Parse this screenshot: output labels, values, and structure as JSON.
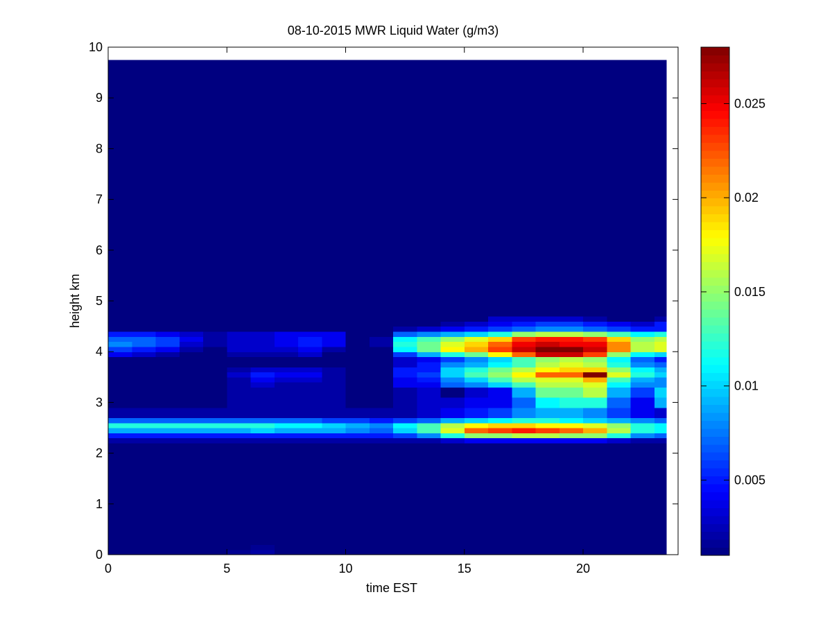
{
  "chart_data": {
    "type": "heatmap",
    "title": "08-10-2015 MWR Liquid Water (g/m3)",
    "xlabel": "time EST",
    "ylabel": "height km",
    "xlim": [
      0,
      24
    ],
    "ylim": [
      0,
      10
    ],
    "xticks": [
      0,
      5,
      10,
      15,
      20
    ],
    "yticks": [
      0,
      1,
      2,
      3,
      4,
      5,
      6,
      7,
      8,
      9,
      10
    ],
    "colorbar": {
      "colormap": "jet",
      "range": [
        0.001,
        0.028
      ],
      "ticks": [
        0.005,
        0.01,
        0.015,
        0.02,
        0.025
      ],
      "tick_labels": [
        "0.005",
        "0.01",
        "0.015",
        "0.02",
        "0.025"
      ]
    },
    "grid": false,
    "x_edges": [
      0,
      1,
      2,
      3,
      4,
      5,
      6,
      7,
      8,
      9,
      10,
      11,
      12,
      13,
      14,
      15,
      16,
      17,
      18,
      19,
      20,
      21,
      22,
      23,
      23.5
    ],
    "y_edges": [
      0,
      0.1,
      0.2,
      2.2,
      2.3,
      2.4,
      2.5,
      2.6,
      2.7,
      2.9,
      3.1,
      3.3,
      3.4,
      3.5,
      3.6,
      3.7,
      3.8,
      3.9,
      4.0,
      4.1,
      4.2,
      4.3,
      4.4,
      4.5,
      4.6,
      4.7,
      9.75
    ],
    "background_value": 0.001,
    "values": [
      [
        0.001,
        0.001,
        0.001,
        0.001,
        0.001,
        0.0015,
        0.002,
        0.001,
        0.001,
        0.001,
        0.001,
        0.001,
        0.001,
        0.001,
        0.001,
        0.001,
        0.001,
        0.001,
        0.001,
        0.001,
        0.001,
        0.001,
        0.001,
        0.001
      ],
      [
        0.001,
        0.001,
        0.001,
        0.001,
        0.001,
        0.001,
        0.0015,
        0.001,
        0.001,
        0.001,
        0.001,
        0.001,
        0.001,
        0.001,
        0.001,
        0.001,
        0.001,
        0.001,
        0.001,
        0.001,
        0.001,
        0.001,
        0.001,
        0.001
      ],
      [
        0.001,
        0.001,
        0.001,
        0.001,
        0.001,
        0.001,
        0.001,
        0.001,
        0.001,
        0.001,
        0.001,
        0.001,
        0.001,
        0.001,
        0.001,
        0.001,
        0.001,
        0.001,
        0.001,
        0.001,
        0.001,
        0.001,
        0.001,
        0.001
      ],
      [
        0.002,
        0.002,
        0.002,
        0.002,
        0.002,
        0.002,
        0.002,
        0.002,
        0.002,
        0.002,
        0.002,
        0.002,
        0.002,
        0.002,
        0.003,
        0.004,
        0.004,
        0.004,
        0.004,
        0.004,
        0.004,
        0.003,
        0.002,
        0.002
      ],
      [
        0.005,
        0.005,
        0.005,
        0.005,
        0.005,
        0.005,
        0.005,
        0.005,
        0.005,
        0.005,
        0.005,
        0.005,
        0.006,
        0.008,
        0.012,
        0.015,
        0.015,
        0.016,
        0.016,
        0.015,
        0.015,
        0.012,
        0.008,
        0.007
      ],
      [
        0.009,
        0.009,
        0.009,
        0.009,
        0.009,
        0.009,
        0.01,
        0.009,
        0.009,
        0.009,
        0.008,
        0.007,
        0.01,
        0.013,
        0.017,
        0.022,
        0.023,
        0.024,
        0.023,
        0.022,
        0.02,
        0.016,
        0.012,
        0.011
      ],
      [
        0.012,
        0.012,
        0.012,
        0.012,
        0.012,
        0.012,
        0.012,
        0.011,
        0.011,
        0.01,
        0.009,
        0.008,
        0.011,
        0.013,
        0.016,
        0.018,
        0.019,
        0.019,
        0.018,
        0.018,
        0.017,
        0.015,
        0.012,
        0.011
      ],
      [
        0.007,
        0.007,
        0.007,
        0.007,
        0.007,
        0.007,
        0.007,
        0.007,
        0.007,
        0.006,
        0.006,
        0.005,
        0.006,
        0.007,
        0.009,
        0.01,
        0.011,
        0.012,
        0.012,
        0.011,
        0.01,
        0.009,
        0.008,
        0.007
      ],
      [
        0.002,
        0.002,
        0.002,
        0.002,
        0.002,
        0.002,
        0.002,
        0.002,
        0.002,
        0.002,
        0.002,
        0.002,
        0.002,
        0.003,
        0.004,
        0.005,
        0.006,
        0.008,
        0.009,
        0.009,
        0.008,
        0.006,
        0.004,
        0.003
      ],
      [
        0.001,
        0.001,
        0.001,
        0.001,
        0.001,
        0.002,
        0.002,
        0.002,
        0.002,
        0.002,
        0.001,
        0.001,
        0.002,
        0.003,
        0.003,
        0.004,
        0.004,
        0.007,
        0.011,
        0.012,
        0.012,
        0.007,
        0.004,
        0.009
      ],
      [
        0.001,
        0.001,
        0.001,
        0.001,
        0.001,
        0.002,
        0.002,
        0.002,
        0.002,
        0.002,
        0.001,
        0.001,
        0.002,
        0.003,
        0.001,
        0.003,
        0.004,
        0.009,
        0.014,
        0.014,
        0.016,
        0.009,
        0.006,
        0.01
      ],
      [
        0.001,
        0.001,
        0.001,
        0.001,
        0.001,
        0.002,
        0.003,
        0.002,
        0.002,
        0.002,
        0.001,
        0.001,
        0.004,
        0.004,
        0.007,
        0.008,
        0.01,
        0.013,
        0.016,
        0.016,
        0.017,
        0.011,
        0.008,
        0.008
      ],
      [
        0.001,
        0.001,
        0.001,
        0.001,
        0.001,
        0.002,
        0.004,
        0.003,
        0.003,
        0.002,
        0.001,
        0.001,
        0.004,
        0.005,
        0.008,
        0.01,
        0.013,
        0.016,
        0.017,
        0.017,
        0.02,
        0.013,
        0.009,
        0.008
      ],
      [
        0.001,
        0.001,
        0.001,
        0.001,
        0.001,
        0.003,
        0.005,
        0.004,
        0.004,
        0.002,
        0.001,
        0.001,
        0.005,
        0.006,
        0.01,
        0.013,
        0.015,
        0.018,
        0.022,
        0.022,
        0.028,
        0.017,
        0.012,
        0.01
      ],
      [
        0.001,
        0.001,
        0.001,
        0.001,
        0.001,
        0.002,
        0.003,
        0.003,
        0.003,
        0.002,
        0.001,
        0.001,
        0.005,
        0.005,
        0.01,
        0.012,
        0.014,
        0.016,
        0.018,
        0.019,
        0.019,
        0.015,
        0.011,
        0.009
      ],
      [
        0.001,
        0.001,
        0.001,
        0.001,
        0.001,
        0.001,
        0.001,
        0.001,
        0.001,
        0.001,
        0.001,
        0.001,
        0.003,
        0.005,
        0.008,
        0.009,
        0.011,
        0.013,
        0.016,
        0.017,
        0.016,
        0.012,
        0.008,
        0.007
      ],
      [
        0.001,
        0.001,
        0.001,
        0.001,
        0.001,
        0.001,
        0.001,
        0.001,
        0.001,
        0.001,
        0.001,
        0.001,
        0.003,
        0.004,
        0.006,
        0.008,
        0.01,
        0.013,
        0.015,
        0.016,
        0.015,
        0.011,
        0.007,
        0.005
      ],
      [
        0.004,
        0.003,
        0.002,
        0.001,
        0.001,
        0.002,
        0.002,
        0.002,
        0.003,
        0.001,
        0.001,
        0.001,
        0.006,
        0.009,
        0.012,
        0.014,
        0.018,
        0.022,
        0.026,
        0.026,
        0.023,
        0.015,
        0.011,
        0.01
      ],
      [
        0.006,
        0.005,
        0.004,
        0.002,
        0.001,
        0.003,
        0.003,
        0.003,
        0.004,
        0.002,
        0.001,
        0.001,
        0.011,
        0.014,
        0.018,
        0.02,
        0.023,
        0.026,
        0.028,
        0.028,
        0.026,
        0.021,
        0.016,
        0.017
      ],
      [
        0.008,
        0.007,
        0.006,
        0.003,
        0.002,
        0.003,
        0.003,
        0.004,
        0.005,
        0.004,
        0.001,
        0.002,
        0.012,
        0.014,
        0.017,
        0.019,
        0.022,
        0.025,
        0.026,
        0.025,
        0.025,
        0.021,
        0.016,
        0.017
      ],
      [
        0.007,
        0.007,
        0.006,
        0.004,
        0.002,
        0.003,
        0.003,
        0.004,
        0.005,
        0.004,
        0.001,
        0.002,
        0.011,
        0.013,
        0.015,
        0.017,
        0.019,
        0.023,
        0.024,
        0.024,
        0.023,
        0.019,
        0.015,
        0.016
      ],
      [
        0.005,
        0.005,
        0.004,
        0.003,
        0.002,
        0.003,
        0.003,
        0.004,
        0.004,
        0.004,
        0.001,
        0.001,
        0.007,
        0.008,
        0.009,
        0.01,
        0.012,
        0.015,
        0.016,
        0.016,
        0.015,
        0.013,
        0.011,
        0.012
      ],
      [
        0.001,
        0.001,
        0.001,
        0.001,
        0.001,
        0.001,
        0.001,
        0.001,
        0.001,
        0.001,
        0.001,
        0.001,
        0.002,
        0.003,
        0.004,
        0.005,
        0.006,
        0.007,
        0.008,
        0.008,
        0.007,
        0.006,
        0.005,
        0.005
      ],
      [
        0.001,
        0.001,
        0.001,
        0.001,
        0.001,
        0.001,
        0.001,
        0.001,
        0.001,
        0.001,
        0.001,
        0.001,
        0.001,
        0.001,
        0.002,
        0.003,
        0.004,
        0.005,
        0.006,
        0.006,
        0.005,
        0.004,
        0.003,
        0.005
      ],
      [
        0.001,
        0.001,
        0.001,
        0.001,
        0.001,
        0.001,
        0.001,
        0.001,
        0.001,
        0.001,
        0.001,
        0.001,
        0.001,
        0.001,
        0.001,
        0.001,
        0.003,
        0.003,
        0.003,
        0.003,
        0.002,
        0.001,
        0.001,
        0.002
      ],
      [
        0.001,
        0.001,
        0.001,
        0.001,
        0.001,
        0.001,
        0.001,
        0.001,
        0.001,
        0.001,
        0.001,
        0.001,
        0.001,
        0.001,
        0.001,
        0.001,
        0.001,
        0.001,
        0.001,
        0.001,
        0.001,
        0.001,
        0.001,
        0.001
      ]
    ]
  }
}
